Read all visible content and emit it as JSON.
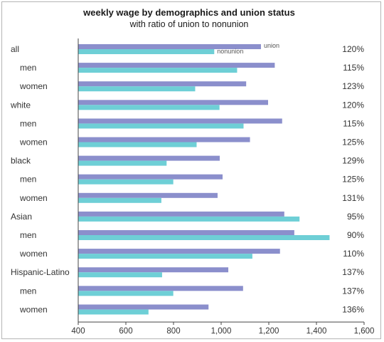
{
  "chart_data": {
    "type": "bar",
    "orientation": "horizontal",
    "title": "weekly wage by demographics and union status",
    "subtitle": "with ratio of union to nonunion",
    "xlim": [
      400,
      1600
    ],
    "xticks": [
      400,
      600,
      800,
      1000,
      1200,
      1400,
      1600
    ],
    "xtick_labels": [
      "400",
      "600",
      "800",
      "1,000",
      "1,200",
      "1,400",
      "1,600"
    ],
    "grid": false,
    "legend": "inline labels beside first bar pair",
    "categories": [
      {
        "label": "all",
        "indent": false,
        "ratio": "120%"
      },
      {
        "label": "men",
        "indent": true,
        "ratio": "115%"
      },
      {
        "label": "women",
        "indent": true,
        "ratio": "123%"
      },
      {
        "label": "white",
        "indent": false,
        "ratio": "120%"
      },
      {
        "label": "men",
        "indent": true,
        "ratio": "115%"
      },
      {
        "label": "women",
        "indent": true,
        "ratio": "125%"
      },
      {
        "label": "black",
        "indent": false,
        "ratio": "129%"
      },
      {
        "label": "men",
        "indent": true,
        "ratio": "125%"
      },
      {
        "label": "women",
        "indent": true,
        "ratio": "131%"
      },
      {
        "label": "Asian",
        "indent": false,
        "ratio": "95%"
      },
      {
        "label": "men",
        "indent": true,
        "ratio": "90%"
      },
      {
        "label": "women",
        "indent": true,
        "ratio": "110%"
      },
      {
        "label": "Hispanic-Latino",
        "indent": false,
        "ratio": "137%"
      },
      {
        "label": "men",
        "indent": true,
        "ratio": "137%"
      },
      {
        "label": "women",
        "indent": true,
        "ratio": "136%"
      }
    ],
    "series": [
      {
        "name": "union",
        "color": "#8b8fcc",
        "values": [
          1167,
          1225,
          1105,
          1197,
          1256,
          1121,
          994,
          1006,
          985,
          1265,
          1307,
          1247,
          1030,
          1092,
          947
        ]
      },
      {
        "name": "nonunion",
        "color": "#6ecfd6",
        "values": [
          971,
          1067,
          891,
          993,
          1094,
          897,
          771,
          799,
          749,
          1329,
          1455,
          1131,
          752,
          799,
          695
        ]
      }
    ]
  }
}
